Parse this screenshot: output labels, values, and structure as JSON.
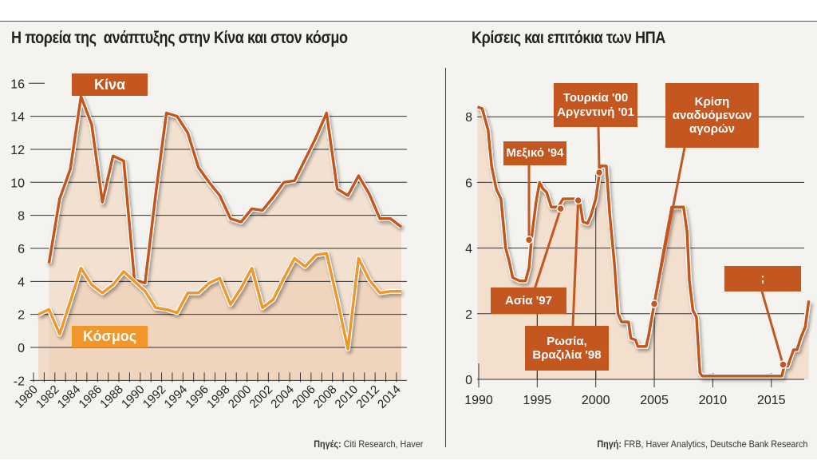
{
  "left": {
    "title": "Η πορεία της  ανάπτυξης στην Κίνα και στον κόσμο",
    "source_label": "Πηγές:",
    "source_text": " Citi Research, Haver",
    "label_china": "Κίνα",
    "label_world": "Κόσμος"
  },
  "right": {
    "title": "Κρίσεις και επιτόκια των ΗΠΑ",
    "source_label": "Πηγή:",
    "source_text": " FRB, Haver Analytics, Deutsche Bank Research",
    "annotations": [
      "Μεξικό '94",
      "Ασία '97",
      "Ρωσία,\nΒραζιλία '98",
      "Τουρκία '00\nΑργεντινή '01",
      "Κρίση\nαναδυόμενων\nαγορών",
      ";"
    ]
  },
  "colors": {
    "china": "#c4561f",
    "world": "#f0962a",
    "fill": "#f2dac6",
    "label_bg": "#c4561f",
    "rate": "#c4561f"
  },
  "chart_data": [
    {
      "type": "line",
      "title": "Η πορεία της  ανάπτυξης στην Κίνα και στον κόσμο",
      "ylim": [
        -2,
        16
      ],
      "yticks": [
        "-2",
        "0",
        "2",
        "4",
        "6",
        "8",
        "10",
        "12",
        "14",
        "16"
      ],
      "xticks": [
        "1980",
        "1982",
        "1984",
        "1986",
        "1988",
        "1990",
        "1992",
        "1994",
        "1996",
        "1998",
        "2000",
        "2002",
        "2004",
        "2006",
        "2008",
        "2010",
        "2012",
        "2014"
      ],
      "grid": true,
      "series": [
        {
          "name": "Κίνα",
          "x": [
            1981,
            1982,
            1983,
            1984,
            1985,
            1986,
            1987,
            1988,
            1989,
            1990,
            1991,
            1992,
            1993,
            1994,
            1995,
            1996,
            1997,
            1998,
            1999,
            2000,
            2001,
            2002,
            2003,
            2004,
            2005,
            2006,
            2007,
            2008,
            2009,
            2010,
            2011,
            2012,
            2013,
            2014
          ],
          "y": [
            5.1,
            9.0,
            10.8,
            15.2,
            13.5,
            8.8,
            11.6,
            11.3,
            4.1,
            3.9,
            9.3,
            14.2,
            14.0,
            13.0,
            10.9,
            10.0,
            9.2,
            7.8,
            7.6,
            8.4,
            8.3,
            9.1,
            10.0,
            10.1,
            11.4,
            12.7,
            14.2,
            9.6,
            9.2,
            10.4,
            9.3,
            7.8,
            7.8,
            7.3
          ]
        },
        {
          "name": "Κόσμος",
          "x": [
            1980,
            1981,
            1982,
            1983,
            1984,
            1985,
            1986,
            1987,
            1988,
            1989,
            1990,
            1991,
            1992,
            1993,
            1994,
            1995,
            1996,
            1997,
            1998,
            1999,
            2000,
            2001,
            2002,
            2003,
            2004,
            2005,
            2006,
            2007,
            2008,
            2009,
            2010,
            2011,
            2012,
            2013,
            2014
          ],
          "y": [
            2.0,
            2.3,
            0.8,
            2.8,
            4.8,
            3.8,
            3.3,
            3.8,
            4.6,
            4.0,
            3.4,
            2.4,
            2.3,
            2.1,
            3.3,
            3.3,
            3.9,
            4.2,
            2.6,
            3.6,
            4.8,
            2.4,
            2.9,
            4.2,
            5.4,
            4.9,
            5.6,
            5.7,
            2.9,
            -0.1,
            5.4,
            4.1,
            3.3,
            3.4,
            3.4
          ]
        }
      ]
    },
    {
      "type": "line",
      "title": "Κρίσεις και επιτόκια των ΗΠΑ",
      "ylim": [
        0,
        8.5
      ],
      "xlim": [
        1990,
        2018.3
      ],
      "yticks": [
        "0",
        "2",
        "4",
        "6",
        "8"
      ],
      "xticks": [
        "1990",
        "1995",
        "2000",
        "2005",
        "2010",
        "2015"
      ],
      "grid": true,
      "series": [
        {
          "x": [
            1989.9,
            1990.3,
            1990.8,
            1991.1,
            1991.5,
            1991.9,
            1992.3,
            1992.6,
            1992.9,
            1993.5,
            1994.0,
            1994.3,
            1994.5,
            1994.9,
            1995.2,
            1995.5,
            1995.8,
            1996.2,
            1996.8,
            1997.2,
            1998.0,
            1998.6,
            1998.9,
            1999.3,
            1999.6,
            2000.0,
            2000.4,
            2000.9,
            2001.2,
            2001.6,
            2001.9,
            2002.2,
            2002.8,
            2003.0,
            2003.4,
            2003.6,
            2004.3,
            2004.5,
            2005.0,
            2005.5,
            2006.0,
            2006.5,
            2007.5,
            2007.8,
            2008.0,
            2008.3,
            2008.6,
            2008.9,
            2009.1,
            2015.9,
            2016.1,
            2016.4,
            2016.9,
            2017.2,
            2017.5,
            2017.9,
            2018.2
          ],
          "y": [
            8.3,
            8.25,
            7.6,
            6.5,
            5.8,
            5.5,
            4.0,
            3.6,
            3.1,
            3.0,
            3.0,
            3.4,
            4.25,
            5.4,
            6.0,
            5.8,
            5.7,
            5.25,
            5.25,
            5.5,
            5.5,
            5.5,
            4.8,
            4.75,
            5.0,
            5.5,
            6.5,
            6.5,
            5.0,
            3.5,
            2.0,
            1.75,
            1.75,
            1.25,
            1.2,
            1.0,
            1.0,
            1.3,
            2.3,
            3.3,
            4.3,
            5.25,
            5.25,
            4.5,
            3.0,
            2.1,
            1.9,
            0.2,
            0.1,
            0.1,
            0.4,
            0.4,
            0.9,
            0.9,
            1.25,
            1.6,
            2.4
          ]
        }
      ],
      "markers": [
        {
          "label": "Μεξικό '94",
          "x": 1994.3,
          "y": 4.25
        },
        {
          "label": "Ασία '97",
          "x": 1997.0,
          "y": 5.2
        },
        {
          "label": "Ρωσία, Βραζιλία '98",
          "x": 1998.5,
          "y": 5.45
        },
        {
          "label": "Τουρκία '00 Αργεντινή '01",
          "x": 2000.3,
          "y": 6.3
        },
        {
          "label": "Κρίση αναδυόμενων αγορών",
          "x": 2005.0,
          "y": 2.3
        },
        {
          "label": ";",
          "x": 2016.0,
          "y": 0.45
        }
      ]
    }
  ]
}
